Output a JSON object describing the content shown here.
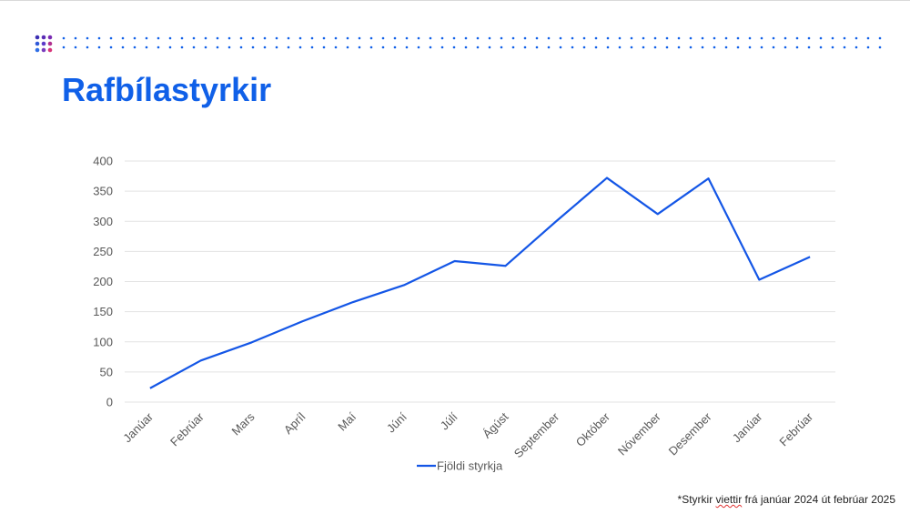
{
  "slide": {
    "title": "Rafbílastyrkir",
    "footnote_prefix": "*Styrkir ",
    "footnote_underlined": "viettir",
    "footnote_suffix": " frá janúar 2024 út febrúar 2025"
  },
  "colors": {
    "accent": "#1060e8",
    "line": "#1456e6",
    "grid": "#e3e3e3",
    "logo_dots": [
      "#3b2fb3",
      "#5a2cb5",
      "#7a2bb3",
      "#2f58d8",
      "#5d3bc8",
      "#b0308f",
      "#2f6fe6",
      "#7a3dbd",
      "#d8357a"
    ]
  },
  "chart_data": {
    "type": "line",
    "categories": [
      "Janúar",
      "Febrúar",
      "Mars",
      "Apríl",
      "Maí",
      "Júní",
      "Júlí",
      "Ágúst",
      "September",
      "Október",
      "Nóvember",
      "Desember",
      "Janúar",
      "Febrúar"
    ],
    "series": [
      {
        "name": "Fjöldi styrkja",
        "values": [
          23,
          69,
          99,
          134,
          166,
          194,
          234,
          226,
          300,
          372,
          312,
          371,
          203,
          241
        ]
      }
    ],
    "y_ticks": [
      0,
      50,
      100,
      150,
      200,
      250,
      300,
      350,
      400
    ],
    "ylim": [
      0,
      400
    ],
    "grid": true,
    "legend_position": "bottom"
  }
}
